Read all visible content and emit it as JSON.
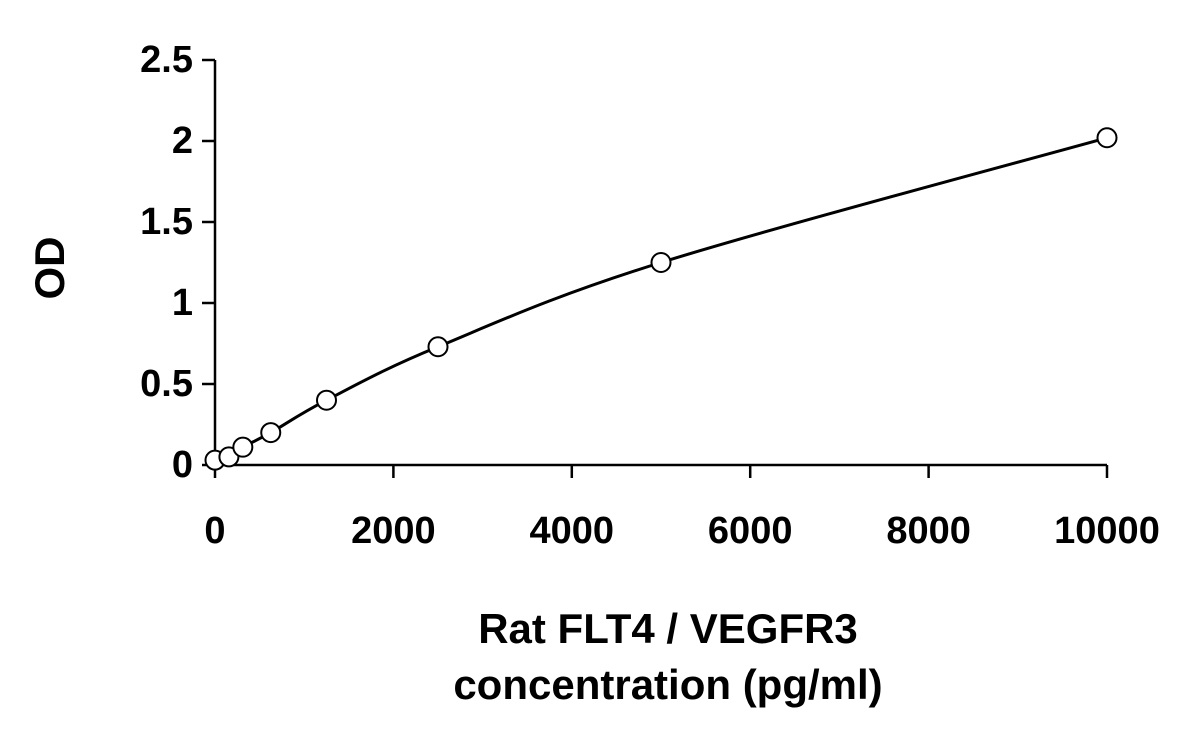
{
  "chart_data": {
    "type": "scatter",
    "title": "",
    "xlabel_lines": [
      "Rat FLT4 / VEGFR3",
      "concentration (pg/ml)"
    ],
    "ylabel": "OD",
    "xlim": [
      0,
      10000
    ],
    "ylim": [
      0,
      2.5
    ],
    "x_ticks": [
      0,
      2000,
      4000,
      6000,
      8000,
      10000
    ],
    "x_tick_labels": [
      "0",
      "2000",
      "4000",
      "6000",
      "8000",
      "10000"
    ],
    "y_ticks": [
      0,
      0.5,
      1,
      1.5,
      2,
      2.5
    ],
    "y_tick_labels": [
      "0",
      "0.5",
      "1",
      "1.5",
      "2",
      "2.5"
    ],
    "grid": false,
    "legend": "none",
    "fit_curve": true,
    "series": [
      {
        "x": [
          0,
          156,
          312,
          625,
          1250,
          2500,
          5000,
          10000
        ],
        "y": [
          0.03,
          0.05,
          0.11,
          0.2,
          0.4,
          0.73,
          1.25,
          2.02
        ]
      }
    ],
    "colors": {
      "axis": "#000000",
      "marker_stroke": "#000000",
      "marker_fill": "#ffffff",
      "curve": "#000000"
    }
  }
}
